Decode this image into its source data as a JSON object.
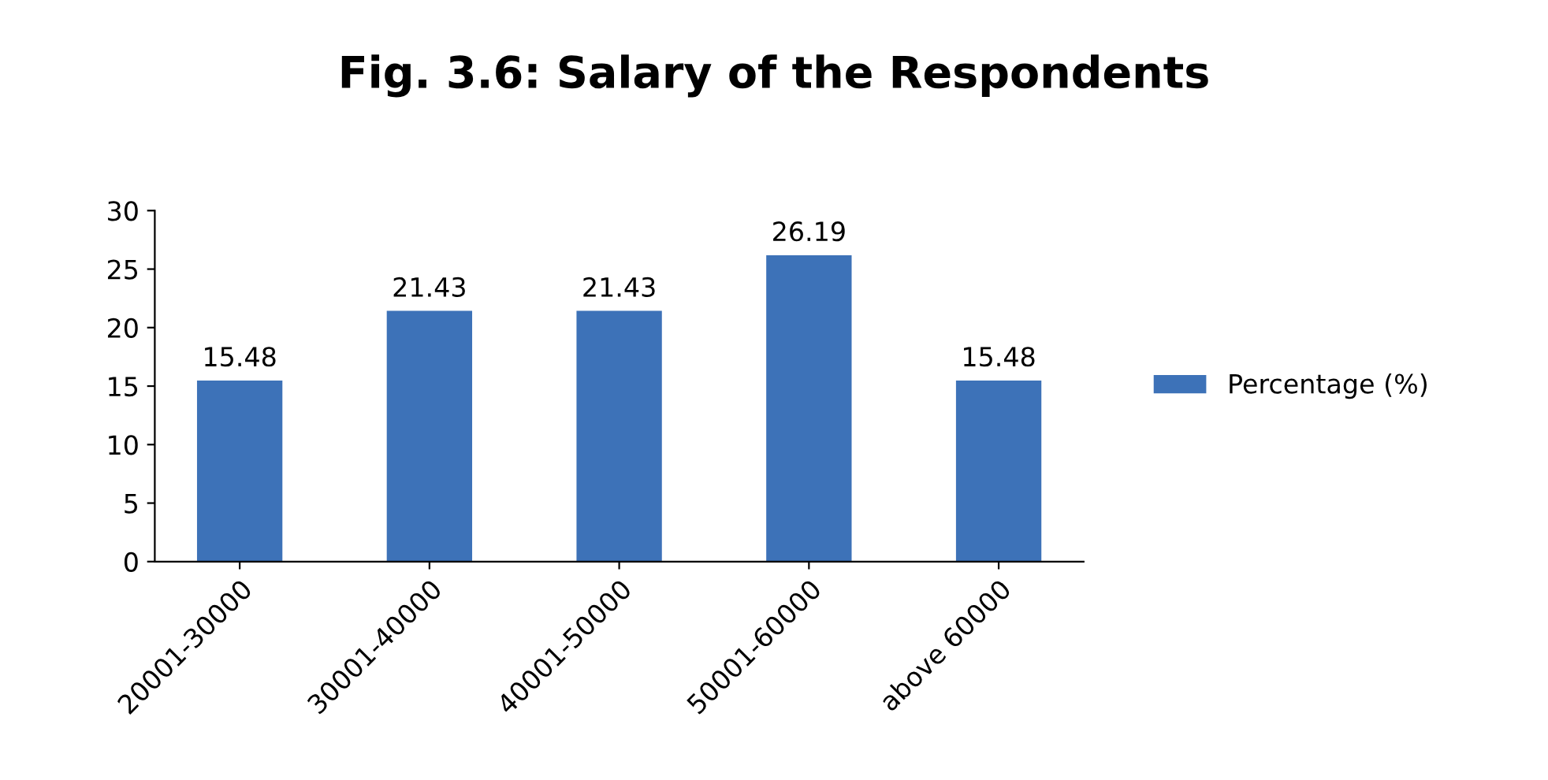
{
  "chart_data": {
    "type": "bar",
    "title": "Fig. 3.6: Salary of the Respondents",
    "categories": [
      "20001-30000",
      "30001-40000",
      "40001-50000",
      "50001-60000",
      "above 60000"
    ],
    "series": [
      {
        "name": "Percentage (%)",
        "color": "#3d72b8",
        "values": [
          15.48,
          21.43,
          21.43,
          26.19,
          15.48
        ]
      }
    ],
    "ylim": [
      0,
      30
    ],
    "yticks": [
      0,
      5,
      10,
      15,
      20,
      25,
      30
    ],
    "data_labels": true,
    "legend": "right",
    "grid": false
  }
}
